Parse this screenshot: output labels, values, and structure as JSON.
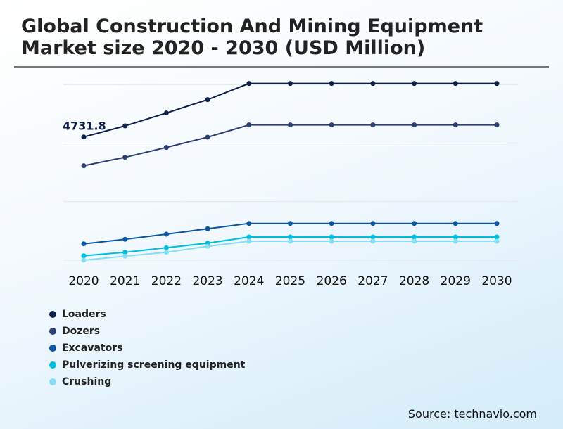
{
  "chart_data": {
    "type": "line",
    "title": "Global Construction And Mining Equipment Market size 2020 - 2030 (USD Million)",
    "xlabel": "",
    "ylabel": "",
    "categories": [
      "2020",
      "2021",
      "2022",
      "2023",
      "2024",
      "2025",
      "2026",
      "2027",
      "2028",
      "2029",
      "2030"
    ],
    "ylim": [
      0,
      6740
    ],
    "grid": true,
    "legend": "bottom-left",
    "series": [
      {
        "name": "Loaders",
        "color": "#0b1f4a",
        "values": [
          4731.8,
          5155,
          5650,
          6163,
          6784,
          6784,
          6784,
          6784,
          6784,
          6784,
          6784
        ]
      },
      {
        "name": "Dozers",
        "color": "#2b3f73",
        "values": [
          3626,
          3950,
          4328,
          4724,
          5192,
          5192,
          5192,
          5192,
          5192,
          5192,
          5192
        ]
      },
      {
        "name": "Excavators",
        "color": "#0a55a0",
        "values": [
          629,
          802,
          999,
          1207,
          1412,
          1412,
          1412,
          1412,
          1412,
          1412,
          1412
        ]
      },
      {
        "name": "Pulverizing screening equipment",
        "color": "#00bde0",
        "values": [
          170,
          305,
          478,
          656,
          891,
          891,
          891,
          891,
          891,
          891,
          891
        ]
      },
      {
        "name": "Crushing",
        "color": "#86dff0",
        "values": [
          0,
          154,
          305,
          532,
          729,
          729,
          729,
          729,
          729,
          729,
          729
        ]
      }
    ],
    "data_labels": [
      {
        "series": "Loaders",
        "category": "2020",
        "text": "4731.8"
      }
    ]
  },
  "source": "Source: technavio.com"
}
